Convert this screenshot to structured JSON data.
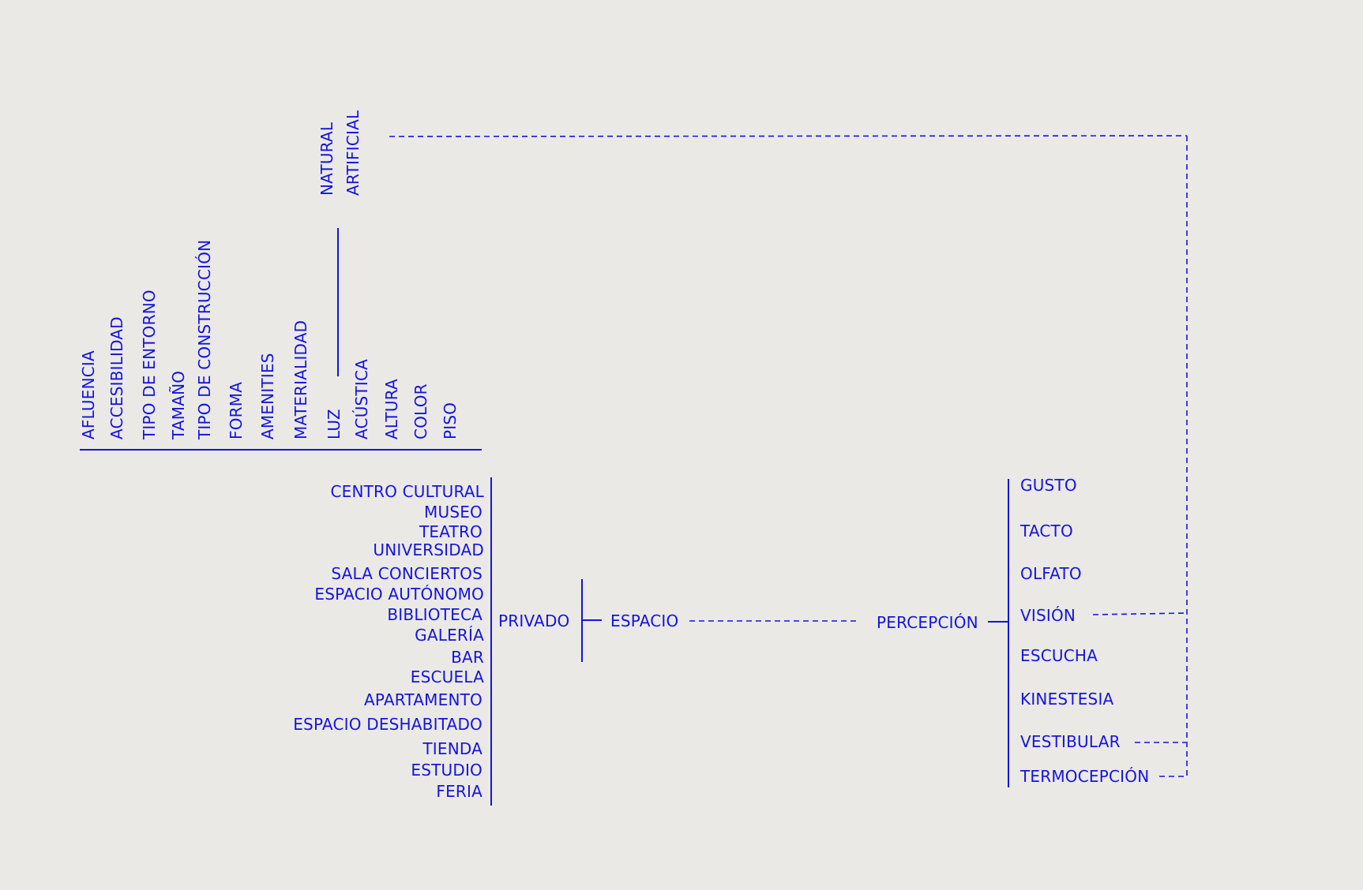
{
  "colors": {
    "background": "#ebe9e6",
    "ink": "#1414dc"
  },
  "attributes": {
    "items": [
      "AFLUENCIA",
      "ACCESIBILIDAD",
      "TIPO DE ENTORNO",
      "TAMAÑO",
      "TIPO DE CONSTRUCCIÓN",
      "FORMA",
      "AMENITIES",
      "MATERIALIDAD",
      "LUZ",
      "ACÚSTICA",
      "ALTURA",
      "COLOR",
      "PISO"
    ]
  },
  "light_types": {
    "items": [
      "NATURAL",
      "ARTIFICIAL"
    ]
  },
  "space_types": {
    "items": [
      "CENTRO CULTURAL",
      "MUSEO",
      "TEATRO",
      "UNIVERSIDAD",
      "SALA CONCIERTOS",
      "ESPACIO AUTÓNOMO",
      "BIBLIOTECA",
      "GALERÍA",
      "BAR",
      "ESCUELA",
      "APARTAMENTO",
      "ESPACIO DESHABITADO",
      "TIENDA",
      "ESTUDIO",
      "FERIA"
    ]
  },
  "nodes": {
    "privado": "PRIVADO",
    "espacio": "ESPACIO",
    "percepcion": "PERCEPCIÓN"
  },
  "senses": {
    "items": [
      "GUSTO",
      "TACTO",
      "OLFATO",
      "VISIÓN",
      "ESCUCHA",
      "KINESTESIA",
      "VESTIBULAR",
      "TERMOCEPCIÓN"
    ]
  }
}
